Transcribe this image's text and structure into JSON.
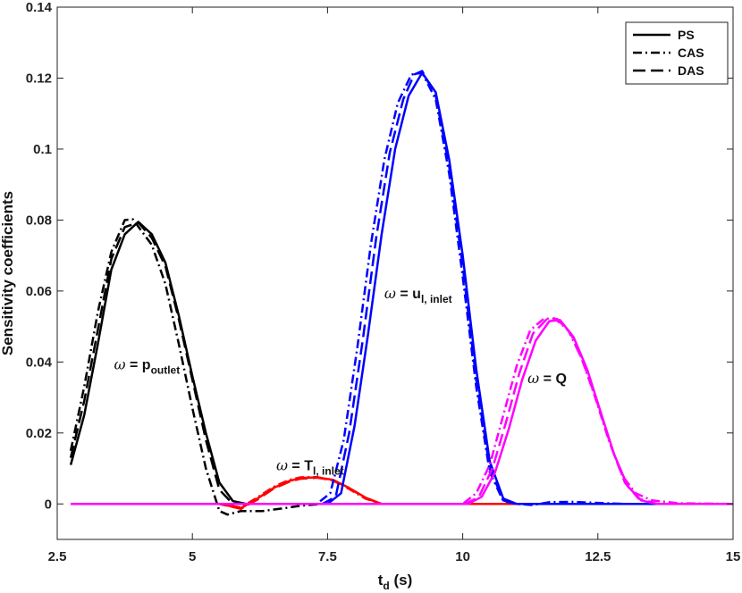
{
  "chart_data": {
    "type": "line",
    "xlabel": "t",
    "xlabel_sub": "d",
    "xlabel_unit": " (s)",
    "ylabel": "Sensitivity coefficients",
    "xlim": [
      2.5,
      15
    ],
    "ylim": [
      -0.01,
      0.14
    ],
    "xticks": [
      2.5,
      5,
      7.5,
      10,
      12.5,
      15
    ],
    "xtick_labels": [
      "2.5",
      "5",
      "7.5",
      "10",
      "12.5",
      "15"
    ],
    "yticks": [
      0,
      0.02,
      0.04,
      0.06,
      0.08,
      0.1,
      0.12,
      0.14
    ],
    "ytick_labels": [
      "0",
      "0.02",
      "0.04",
      "0.06",
      "0.08",
      "0.1",
      "0.12",
      "0.14"
    ],
    "grid": false,
    "legend": {
      "placement": "top-right",
      "entries": [
        {
          "label": "PS",
          "dash": "solid"
        },
        {
          "label": "CAS",
          "dash": "dashdot"
        },
        {
          "label": "DAS",
          "dash": "dashed"
        }
      ]
    },
    "colors": {
      "p_outlet": "#000000",
      "T_inlet": "#ff0000",
      "u_inlet": "#0000ff",
      "Q": "#ff00ff"
    },
    "groups": [
      {
        "key": "p_outlet",
        "label_symbol": "ω",
        "label_main": " = p",
        "label_sub": "outlet",
        "label_at": [
          3.55,
          0.038
        ],
        "series": [
          {
            "style": "PS",
            "points": [
              [
                2.75,
                0.011
              ],
              [
                3.0,
                0.025
              ],
              [
                3.25,
                0.045
              ],
              [
                3.5,
                0.066
              ],
              [
                3.75,
                0.076
              ],
              [
                4.0,
                0.0795
              ],
              [
                4.25,
                0.076
              ],
              [
                4.5,
                0.068
              ],
              [
                4.75,
                0.053
              ],
              [
                5.0,
                0.036
              ],
              [
                5.25,
                0.02
              ],
              [
                5.5,
                0.006
              ],
              [
                5.75,
                0.0008
              ],
              [
                6.0,
                0.0
              ],
              [
                15.0,
                0.0
              ]
            ]
          },
          {
            "style": "CAS",
            "points": [
              [
                2.75,
                0.015
              ],
              [
                3.0,
                0.033
              ],
              [
                3.25,
                0.054
              ],
              [
                3.5,
                0.071
              ],
              [
                3.75,
                0.08
              ],
              [
                3.9,
                0.0802
              ],
              [
                4.25,
                0.073
              ],
              [
                4.5,
                0.062
              ],
              [
                4.75,
                0.045
              ],
              [
                5.0,
                0.027
              ],
              [
                5.25,
                0.01
              ],
              [
                5.5,
                -0.002
              ],
              [
                5.65,
                -0.003
              ],
              [
                5.9,
                -0.002
              ],
              [
                6.3,
                -0.002
              ],
              [
                6.7,
                -0.0012
              ],
              [
                7.0,
                -0.0005
              ],
              [
                7.4,
                0.0
              ],
              [
                15.0,
                0.0
              ]
            ]
          },
          {
            "style": "DAS",
            "points": [
              [
                2.75,
                0.013
              ],
              [
                3.0,
                0.029
              ],
              [
                3.25,
                0.049
              ],
              [
                3.5,
                0.069
              ],
              [
                3.75,
                0.078
              ],
              [
                4.0,
                0.0793
              ],
              [
                4.25,
                0.075
              ],
              [
                4.5,
                0.067
              ],
              [
                4.75,
                0.052
              ],
              [
                5.0,
                0.035
              ],
              [
                5.25,
                0.018
              ],
              [
                5.5,
                0.004
              ],
              [
                5.75,
                0.0
              ],
              [
                15.0,
                0.0
              ]
            ]
          }
        ]
      },
      {
        "key": "T_inlet",
        "label_symbol": "ω",
        "label_main": " = T",
        "label_sub": "l, inlet",
        "label_at": [
          6.55,
          0.0095
        ],
        "series": [
          {
            "style": "PS",
            "points": [
              [
                2.75,
                0.0
              ],
              [
                5.5,
                0.0
              ],
              [
                5.9,
                -0.0012
              ],
              [
                6.2,
                0.0015
              ],
              [
                6.5,
                0.0045
              ],
              [
                6.8,
                0.0065
              ],
              [
                7.0,
                0.0073
              ],
              [
                7.3,
                0.0075
              ],
              [
                7.6,
                0.0068
              ],
              [
                7.9,
                0.0045
              ],
              [
                8.2,
                0.0018
              ],
              [
                8.5,
                0.0
              ],
              [
                15.0,
                0.0
              ]
            ]
          },
          {
            "style": "CAS",
            "points": [
              [
                2.75,
                0.0
              ],
              [
                5.5,
                0.0
              ],
              [
                5.9,
                -0.001
              ],
              [
                6.2,
                0.0018
              ],
              [
                6.5,
                0.0048
              ],
              [
                6.8,
                0.0068
              ],
              [
                7.0,
                0.0075
              ],
              [
                7.3,
                0.0076
              ],
              [
                7.6,
                0.0066
              ],
              [
                7.9,
                0.0042
              ],
              [
                8.2,
                0.0015
              ],
              [
                8.5,
                0.0
              ],
              [
                15.0,
                0.0
              ]
            ]
          },
          {
            "style": "DAS",
            "points": [
              [
                2.75,
                0.0
              ],
              [
                5.5,
                0.0
              ],
              [
                5.9,
                -0.0014
              ],
              [
                6.2,
                0.0012
              ],
              [
                6.5,
                0.0043
              ],
              [
                6.8,
                0.0063
              ],
              [
                7.0,
                0.0071
              ],
              [
                7.3,
                0.0074
              ],
              [
                7.6,
                0.0067
              ],
              [
                7.9,
                0.0044
              ],
              [
                8.2,
                0.0017
              ],
              [
                8.5,
                0.0
              ],
              [
                15.0,
                0.0
              ]
            ]
          }
        ]
      },
      {
        "key": "u_inlet",
        "label_symbol": "ω",
        "label_main": " = u",
        "label_sub": "l, inlet",
        "label_at": [
          8.55,
          0.058
        ],
        "series": [
          {
            "style": "PS",
            "points": [
              [
                2.75,
                0.0
              ],
              [
                7.5,
                0.0
              ],
              [
                7.75,
                0.003
              ],
              [
                8.0,
                0.022
              ],
              [
                8.25,
                0.048
              ],
              [
                8.5,
                0.076
              ],
              [
                8.75,
                0.1
              ],
              [
                9.0,
                0.115
              ],
              [
                9.25,
                0.1215
              ],
              [
                9.5,
                0.116
              ],
              [
                9.75,
                0.097
              ],
              [
                10.0,
                0.07
              ],
              [
                10.25,
                0.038
              ],
              [
                10.5,
                0.012
              ],
              [
                10.75,
                0.0015
              ],
              [
                11.0,
                0.0
              ],
              [
                15.0,
                0.0
              ]
            ]
          },
          {
            "style": "CAS",
            "points": [
              [
                2.75,
                0.0
              ],
              [
                7.3,
                0.0
              ],
              [
                7.55,
                0.003
              ],
              [
                7.8,
                0.018
              ],
              [
                8.05,
                0.044
              ],
              [
                8.3,
                0.073
              ],
              [
                8.55,
                0.097
              ],
              [
                8.8,
                0.113
              ],
              [
                9.05,
                0.121
              ],
              [
                9.25,
                0.1215
              ],
              [
                9.5,
                0.114
              ],
              [
                9.75,
                0.093
              ],
              [
                10.0,
                0.064
              ],
              [
                10.25,
                0.033
              ],
              [
                10.5,
                0.009
              ],
              [
                10.75,
                0.0008
              ],
              [
                11.0,
                0.0
              ],
              [
                11.3,
                -0.0003
              ],
              [
                11.6,
                0.0005
              ],
              [
                12.0,
                0.0006
              ],
              [
                12.5,
                0.0003
              ],
              [
                13.0,
                0.0
              ],
              [
                15.0,
                0.0
              ]
            ]
          },
          {
            "style": "DAS",
            "points": [
              [
                2.75,
                0.0
              ],
              [
                7.4,
                0.0
              ],
              [
                7.65,
                0.002
              ],
              [
                7.9,
                0.02
              ],
              [
                8.15,
                0.046
              ],
              [
                8.4,
                0.075
              ],
              [
                8.65,
                0.099
              ],
              [
                8.9,
                0.114
              ],
              [
                9.1,
                0.121
              ],
              [
                9.25,
                0.122
              ],
              [
                9.5,
                0.115
              ],
              [
                9.75,
                0.095
              ],
              [
                10.0,
                0.067
              ],
              [
                10.25,
                0.035
              ],
              [
                10.5,
                0.01
              ],
              [
                10.75,
                0.001
              ],
              [
                11.0,
                0.0
              ],
              [
                15.0,
                0.0
              ]
            ]
          }
        ]
      },
      {
        "key": "Q",
        "label_symbol": "ω",
        "label_main": " = Q",
        "label_sub": "",
        "label_at": [
          11.2,
          0.034
        ],
        "series": [
          {
            "style": "PS",
            "points": [
              [
                2.75,
                0.0
              ],
              [
                10.1,
                0.0
              ],
              [
                10.35,
                0.002
              ],
              [
                10.6,
                0.009
              ],
              [
                10.85,
                0.021
              ],
              [
                11.1,
                0.035
              ],
              [
                11.35,
                0.046
              ],
              [
                11.6,
                0.0515
              ],
              [
                11.8,
                0.0518
              ],
              [
                12.05,
                0.047
              ],
              [
                12.3,
                0.038
              ],
              [
                12.55,
                0.026
              ],
              [
                12.8,
                0.014
              ],
              [
                13.05,
                0.005
              ],
              [
                13.3,
                0.001
              ],
              [
                13.6,
                0.0
              ],
              [
                15.0,
                0.0
              ]
            ]
          },
          {
            "style": "CAS",
            "points": [
              [
                2.75,
                0.0
              ],
              [
                10.0,
                0.0
              ],
              [
                10.25,
                0.003
              ],
              [
                10.5,
                0.011
              ],
              [
                10.75,
                0.025
              ],
              [
                11.0,
                0.039
              ],
              [
                11.25,
                0.049
              ],
              [
                11.5,
                0.0522
              ],
              [
                11.7,
                0.0523
              ],
              [
                11.95,
                0.049
              ],
              [
                12.2,
                0.041
              ],
              [
                12.45,
                0.03
              ],
              [
                12.7,
                0.018
              ],
              [
                12.95,
                0.008
              ],
              [
                13.2,
                0.003
              ],
              [
                13.5,
                0.001
              ],
              [
                14.0,
                0.0002
              ],
              [
                15.0,
                0.0
              ]
            ]
          },
          {
            "style": "DAS",
            "points": [
              [
                2.75,
                0.0
              ],
              [
                10.05,
                0.0
              ],
              [
                10.3,
                0.002
              ],
              [
                10.55,
                0.01
              ],
              [
                10.8,
                0.023
              ],
              [
                11.05,
                0.037
              ],
              [
                11.3,
                0.048
              ],
              [
                11.55,
                0.052
              ],
              [
                11.75,
                0.0521
              ],
              [
                12.0,
                0.048
              ],
              [
                12.25,
                0.039
              ],
              [
                12.5,
                0.028
              ],
              [
                12.75,
                0.016
              ],
              [
                13.0,
                0.006
              ],
              [
                13.25,
                0.0015
              ],
              [
                13.6,
                0.0
              ],
              [
                15.0,
                0.0
              ]
            ]
          }
        ]
      }
    ]
  }
}
